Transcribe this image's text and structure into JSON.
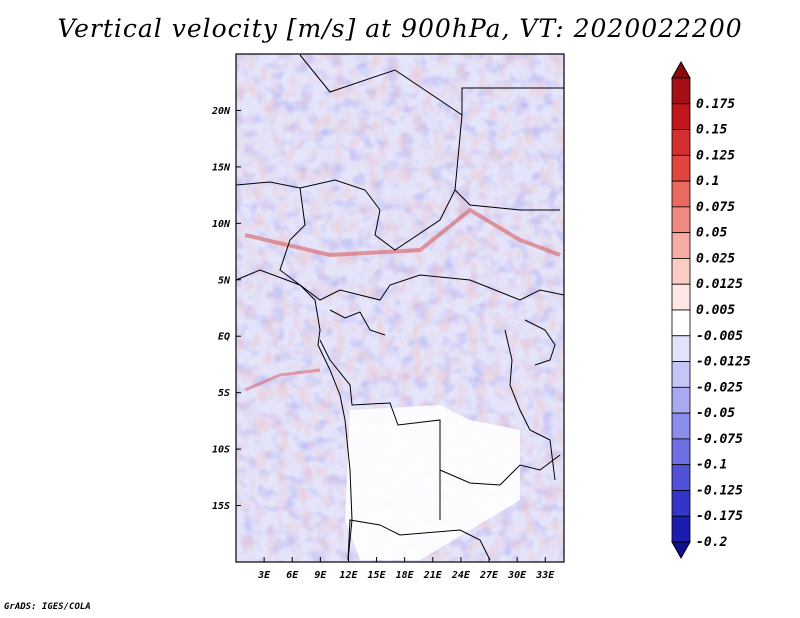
{
  "title": "Vertical velocity [m/s] at 900hPa, VT: 2020022200",
  "credit": "GrADS: IGES/COLA",
  "map": {
    "lon_range": [
      0,
      35
    ],
    "lat_range": [
      -20,
      25
    ],
    "lat_ticks": [
      {
        "value": 20,
        "label": "20N"
      },
      {
        "value": 15,
        "label": "15N"
      },
      {
        "value": 10,
        "label": "10N"
      },
      {
        "value": 5,
        "label": "5N"
      },
      {
        "value": 0,
        "label": "EQ"
      },
      {
        "value": -5,
        "label": "5S"
      },
      {
        "value": -10,
        "label": "10S"
      },
      {
        "value": -15,
        "label": "15S"
      }
    ],
    "lon_ticks": [
      {
        "value": 3,
        "label": "3E"
      },
      {
        "value": 6,
        "label": "6E"
      },
      {
        "value": 9,
        "label": "9E"
      },
      {
        "value": 12,
        "label": "12E"
      },
      {
        "value": 15,
        "label": "15E"
      },
      {
        "value": 18,
        "label": "18E"
      },
      {
        "value": 21,
        "label": "21E"
      },
      {
        "value": 24,
        "label": "24E"
      },
      {
        "value": 27,
        "label": "27E"
      },
      {
        "value": 30,
        "label": "30E"
      },
      {
        "value": 33,
        "label": "33E"
      }
    ]
  },
  "colorbar": {
    "bins": [
      {
        "label": "0.175",
        "color": "#a50f15"
      },
      {
        "label": "0.15",
        "color": "#c0161c"
      },
      {
        "label": "0.125",
        "color": "#d32f2f"
      },
      {
        "label": "0.1",
        "color": "#e0453f"
      },
      {
        "label": "0.075",
        "color": "#e96a60"
      },
      {
        "label": "0.05",
        "color": "#f08a80"
      },
      {
        "label": "0.025",
        "color": "#f6aca4"
      },
      {
        "label": "0.0125",
        "color": "#fbcbc6"
      },
      {
        "label": "0.005",
        "color": "#fde6e3"
      },
      {
        "label": "-0.005",
        "color": "#ffffff"
      },
      {
        "label": "-0.0125",
        "color": "#e2e2fb"
      },
      {
        "label": "-0.025",
        "color": "#c6c6f6"
      },
      {
        "label": "-0.05",
        "color": "#a9a9f1"
      },
      {
        "label": "-0.075",
        "color": "#8c8ceb"
      },
      {
        "label": "-0.1",
        "color": "#6f6fe3"
      },
      {
        "label": "-0.125",
        "color": "#5252d8"
      },
      {
        "label": "-0.175",
        "color": "#3434c8"
      },
      {
        "label": "-0.2",
        "color": "#1c1cb0"
      }
    ],
    "top_arrow_color": "#8b0a10",
    "bottom_arrow_color": "#0f0f90"
  }
}
